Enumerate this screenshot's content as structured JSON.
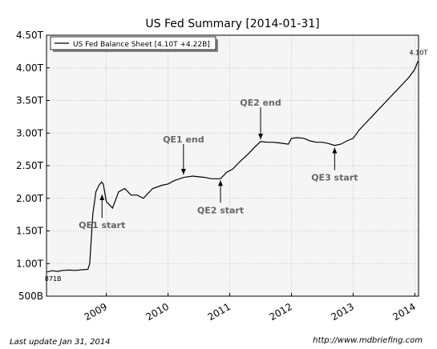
{
  "chart_data": {
    "type": "line",
    "title": "US Fed Summary  [2014-01-31]",
    "x": [
      2008.04,
      2008.12,
      2008.2,
      2008.3,
      2008.4,
      2008.5,
      2008.6,
      2008.7,
      2008.73,
      2008.78,
      2008.83,
      2008.88,
      2008.92,
      2008.95,
      2009.0,
      2009.05,
      2009.1,
      2009.2,
      2009.3,
      2009.4,
      2009.5,
      2009.6,
      2009.75,
      2009.9,
      2010.0,
      2010.1,
      2010.25,
      2010.4,
      2010.5,
      2010.6,
      2010.7,
      2010.85,
      2010.95,
      2011.05,
      2011.15,
      2011.3,
      2011.4,
      2011.5,
      2011.6,
      2011.7,
      2011.8,
      2011.95,
      2012.0,
      2012.1,
      2012.2,
      2012.3,
      2012.4,
      2012.5,
      2012.6,
      2012.7,
      2012.8,
      2012.9,
      2013.0,
      2013.1,
      2013.2,
      2013.3,
      2013.4,
      2013.5,
      2013.6,
      2013.7,
      2013.8,
      2013.9,
      2014.0,
      2014.05
    ],
    "series": [
      {
        "name": "US Fed Balance Sheet [4.10T +4.22B]",
        "color": "#000000",
        "values": [
          871,
          890,
          880,
          895,
          900,
          895,
          905,
          910,
          1000,
          1750,
          2100,
          2200,
          2250,
          2220,
          1950,
          1900,
          1850,
          2100,
          2150,
          2050,
          2050,
          2000,
          2150,
          2200,
          2220,
          2270,
          2320,
          2340,
          2330,
          2320,
          2300,
          2300,
          2400,
          2450,
          2550,
          2680,
          2780,
          2870,
          2860,
          2860,
          2850,
          2830,
          2920,
          2930,
          2920,
          2880,
          2860,
          2860,
          2840,
          2810,
          2830,
          2880,
          2920,
          3050,
          3150,
          3250,
          3350,
          3450,
          3550,
          3650,
          3750,
          3850,
          3980,
          4100
        ],
        "value_labels": [
          "871B",
          null,
          null,
          null,
          null,
          null,
          null,
          null,
          null,
          null,
          null,
          null,
          null,
          null,
          null,
          null,
          null,
          null,
          null,
          null,
          null,
          null,
          null,
          null,
          null,
          null,
          null,
          null,
          null,
          null,
          null,
          null,
          null,
          null,
          null,
          null,
          null,
          null,
          null,
          null,
          null,
          null,
          null,
          null,
          null,
          null,
          null,
          null,
          null,
          null,
          null,
          null,
          null,
          null,
          null,
          null,
          null,
          null,
          null,
          null,
          null,
          null,
          null,
          "4.10T"
        ]
      }
    ],
    "xlim": [
      2008.03,
      2014.06
    ],
    "xticks": [
      2009,
      2010,
      2011,
      2012,
      2013,
      2014
    ],
    "ylim": [
      500,
      4500
    ],
    "yticks": [
      {
        "value": 500,
        "label": "500B"
      },
      {
        "value": 1000,
        "label": "1.00T"
      },
      {
        "value": 1500,
        "label": "1.50T"
      },
      {
        "value": 2000,
        "label": "2.00T"
      },
      {
        "value": 2500,
        "label": "2.50T"
      },
      {
        "value": 3000,
        "label": "3.00T"
      },
      {
        "value": 3500,
        "label": "3.50T"
      },
      {
        "value": 4000,
        "label": "4.00T"
      },
      {
        "value": 4500,
        "label": "4.50T"
      }
    ],
    "grid": true,
    "legend": "upper left",
    "annotations": [
      {
        "text": "QE1 start",
        "x": 2008.93,
        "y": 2080
      },
      {
        "text": "QE1 end",
        "x": 2010.25,
        "y": 2340
      },
      {
        "text": "QE2 end",
        "x": 2011.5,
        "y": 2880
      },
      {
        "text": "QE2 start",
        "x": 2010.85,
        "y": 2300
      },
      {
        "text": "QE3 start",
        "x": 2012.7,
        "y": 2800
      }
    ],
    "footer_left": "Last update Jan 31, 2014",
    "footer_right": "http://www.mdbriefing.com"
  }
}
